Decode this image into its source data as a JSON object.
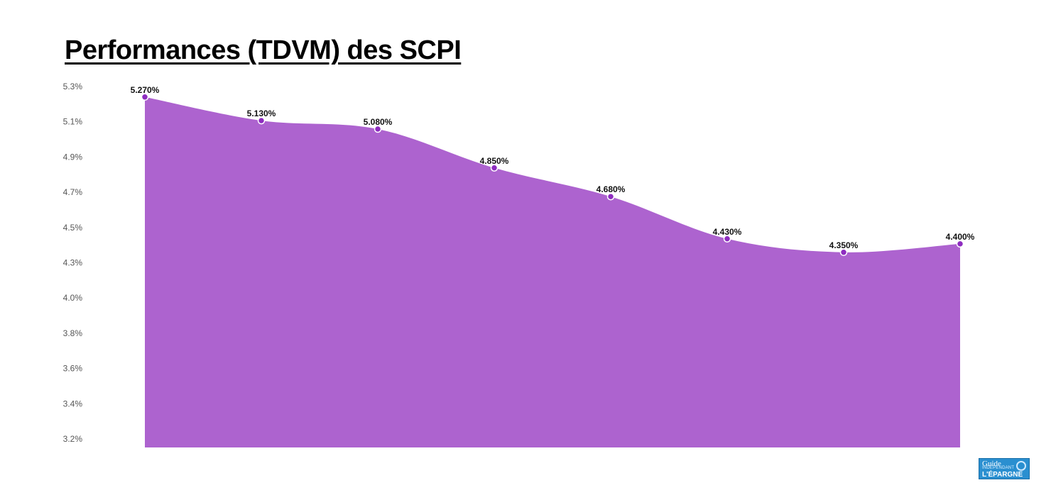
{
  "chart_data": {
    "type": "area",
    "title": "Performances (TDVM) des SCPI",
    "x": [
      "",
      "",
      "",
      "",
      "",
      "",
      "",
      ""
    ],
    "values": [
      5.27,
      5.13,
      5.08,
      4.85,
      4.68,
      4.43,
      4.35,
      4.4
    ],
    "data_labels": [
      "5.270%",
      "5.130%",
      "5.080%",
      "4.850%",
      "4.680%",
      "4.430%",
      "4.350%",
      "4.400%"
    ],
    "y_ticks": [
      "5.3%",
      "5.1%",
      "4.9%",
      "4.7%",
      "4.5%",
      "4.3%",
      "4.0%",
      "3.8%",
      "3.6%",
      "3.4%",
      "3.2%"
    ],
    "ylim": [
      3.2,
      5.3
    ],
    "grid": false,
    "colors": {
      "area": "#ad63cf",
      "marker": "#8e2cc0",
      "marker_stroke": "#ffffff"
    }
  },
  "logo": {
    "line1": "Guide",
    "line2": "INDÉPENDANT",
    "line3": "L'ÉPARGNE"
  }
}
